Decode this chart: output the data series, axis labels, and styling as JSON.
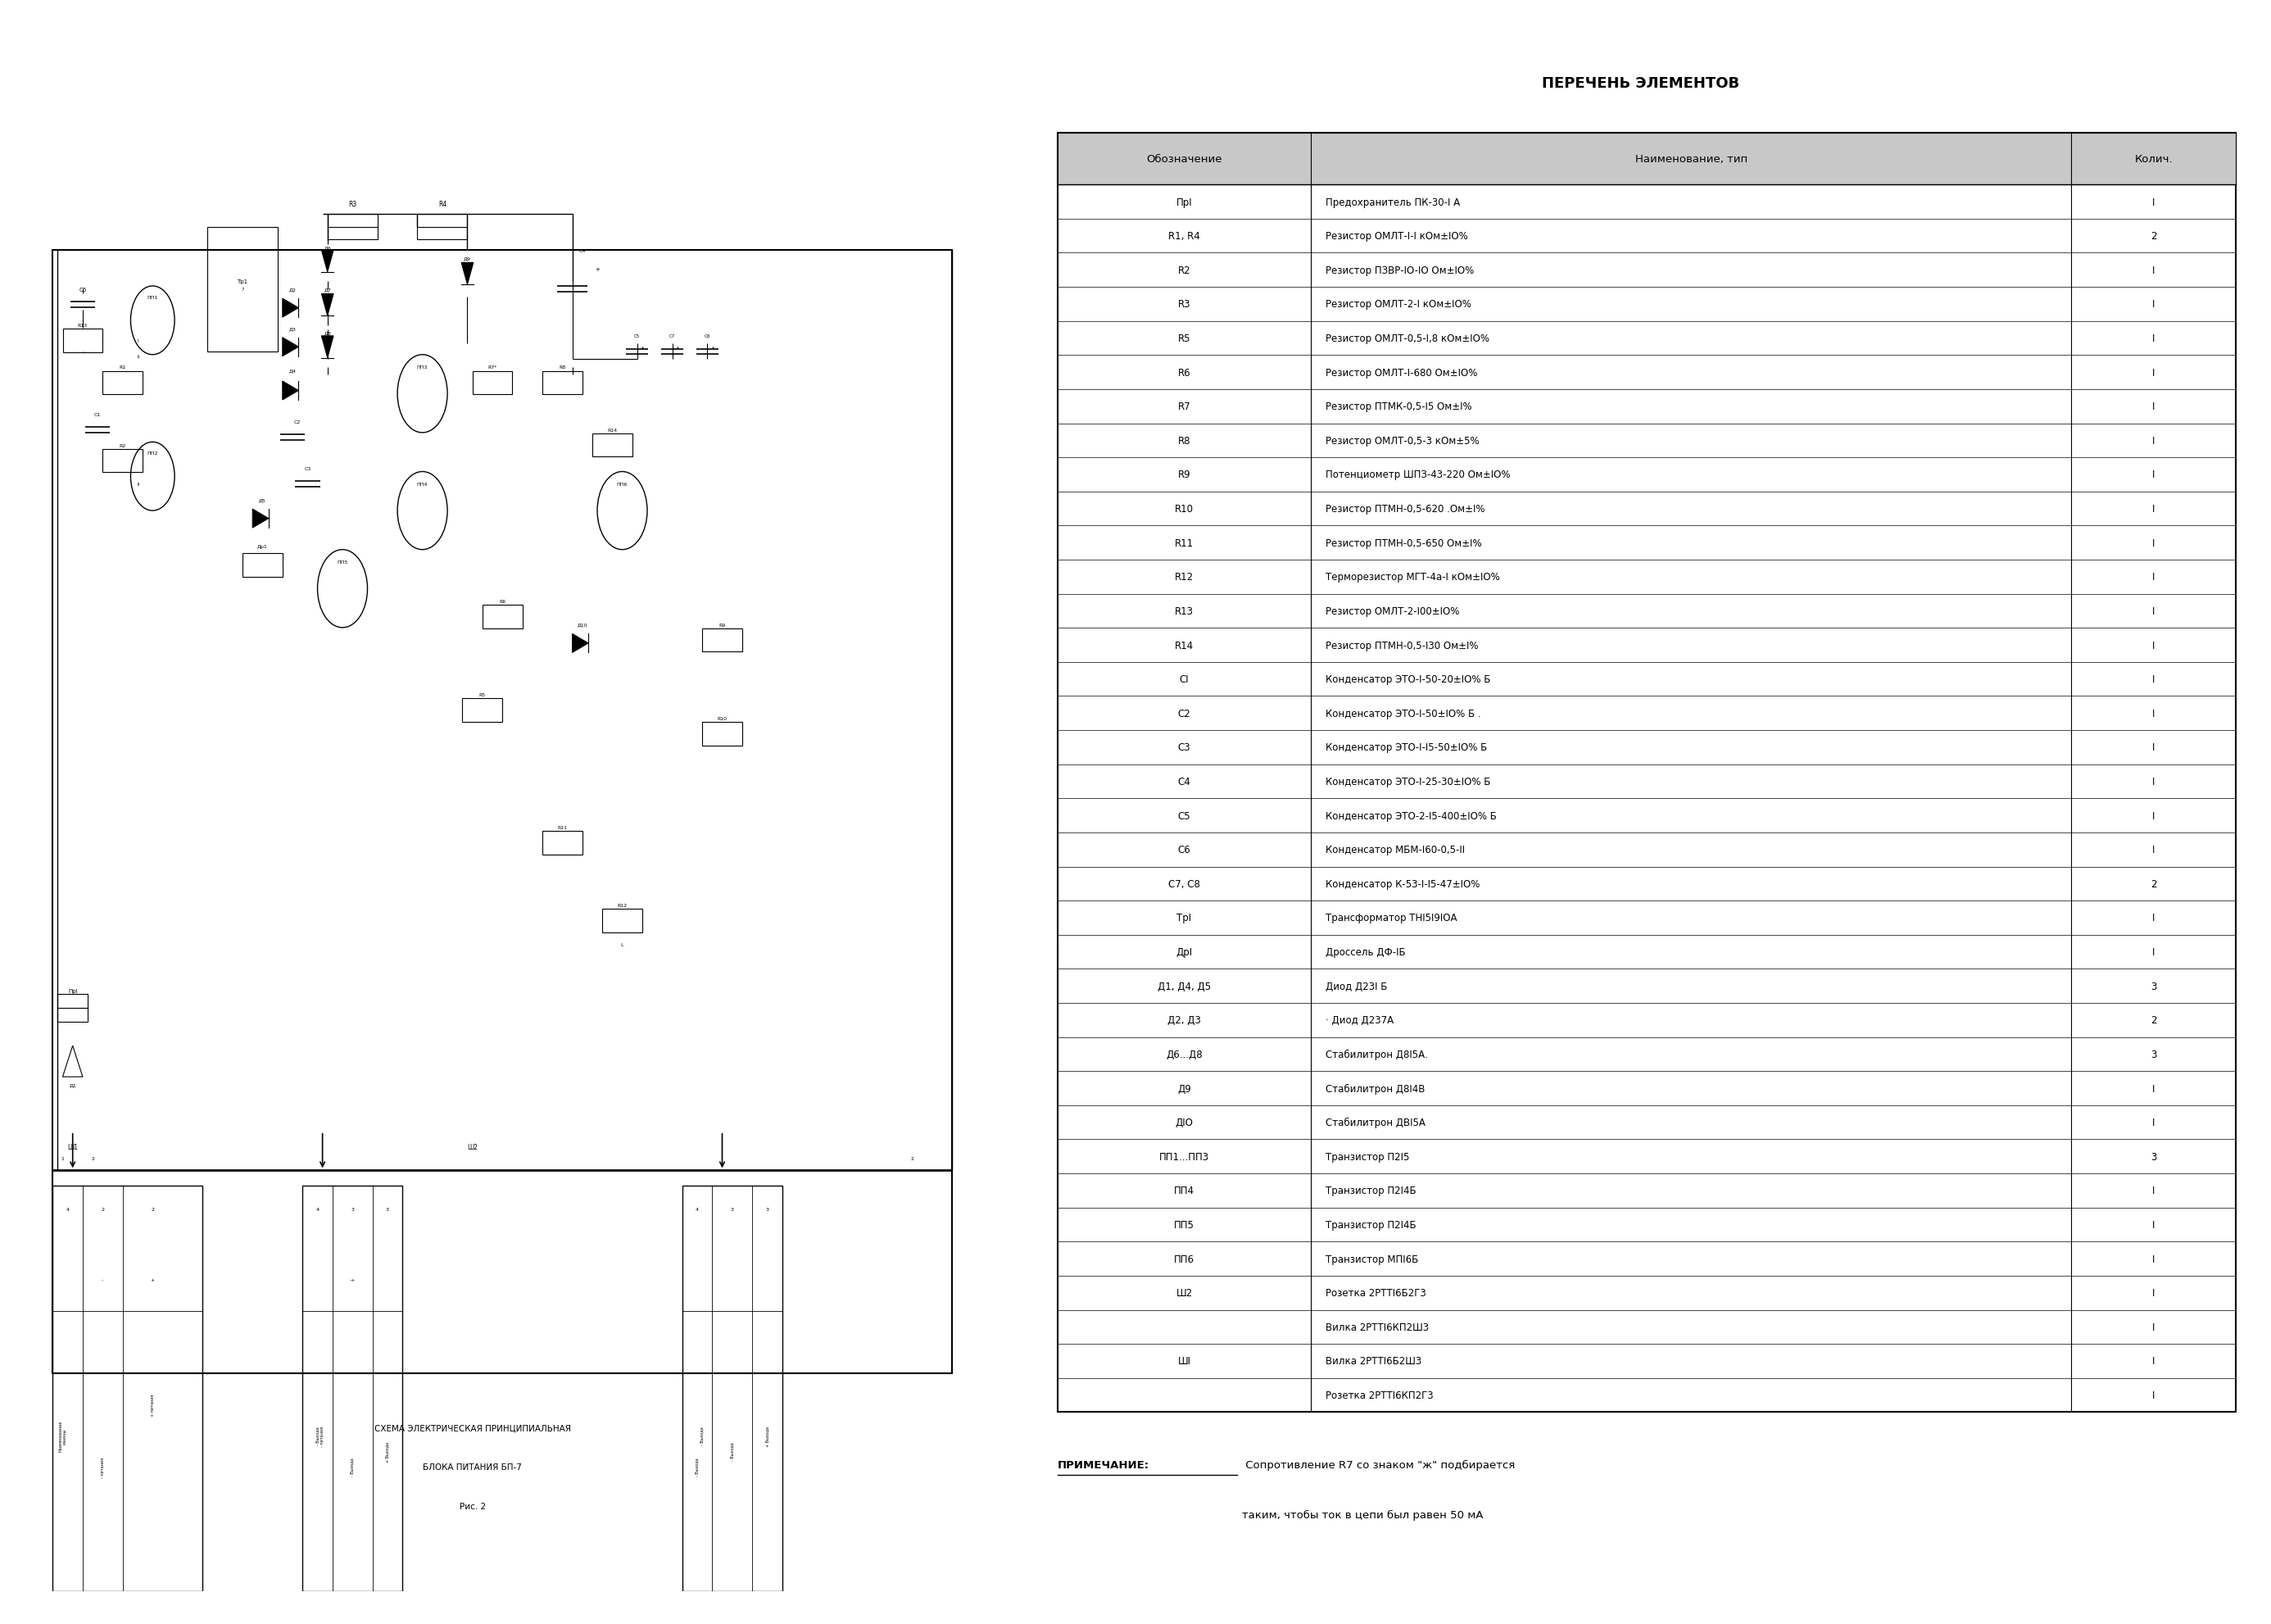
{
  "title": "ПЕРЕЧЕНЬ ЭЛЕМЕНТОВ",
  "page_bg": "#ffffff",
  "col_headers": [
    "Обозначение",
    "Наименование, тип",
    "Колич."
  ],
  "rows": [
    [
      "ПрI",
      "Предохранитель ПК-30-I А",
      "I"
    ],
    [
      "R1, R4",
      "Резистор ОМЛТ-I-I кОм±IO%",
      "2"
    ],
    [
      "R2",
      "Резистор ПЗВР-IO-IO Ом±IO%",
      "I"
    ],
    [
      "R3",
      "Резистор ОМЛТ-2-I кОм±IO%",
      "I"
    ],
    [
      "R5",
      "Резистор ОМЛТ-0,5-I,8 кОм±IO%",
      "I"
    ],
    [
      "R6",
      "Резистор ОМЛТ-I-680 Ом±IO%",
      "I"
    ],
    [
      "R7",
      "Резистор ПТМК-0,5-I5 Ом±I%",
      "I"
    ],
    [
      "R8",
      "Резистор ОМЛТ-0,5-3 кОм±5%",
      "I"
    ],
    [
      "R9",
      "Потенциометр ШПЗ-43-220 Ом±IO%",
      "I"
    ],
    [
      "R10",
      "Резистор ПТМН-0,5-620 .Ом±I%",
      "I"
    ],
    [
      "R11",
      "Резистор ПТМН-0,5-650 Ом±I%",
      "I"
    ],
    [
      "R12",
      "Терморезистор МГТ-4а-I кОм±IO%",
      "I"
    ],
    [
      "R13",
      "Резистор ОМЛТ-2-I00±IO%",
      "I"
    ],
    [
      "R14",
      "Резистор ПТМН-0,5-I30 Ом±I%",
      "I"
    ],
    [
      "CI",
      "Конденсатор ЭТО-I-50-20±IO% Б",
      "I"
    ],
    [
      "C2",
      "Конденсатор ЭТО-I-50±IO% Б .",
      "I"
    ],
    [
      "C3",
      "Конденсатор ЭТО-I-I5-50±IO% Б",
      "I"
    ],
    [
      "C4",
      "Конденсатор ЭТО-I-25-30±IO% Б",
      "I"
    ],
    [
      "C5",
      "Конденсатор ЭТО-2-I5-400±IO% Б",
      "I"
    ],
    [
      "C6",
      "Конденсатор МБМ-I60-0,5-II",
      "I"
    ],
    [
      "C7, C8",
      "Конденсатор К-53-I-I5-47±IO%",
      "2"
    ],
    [
      "ТрI",
      "Трансформатор ТНI5I9IOА",
      "I"
    ],
    [
      "ДрI",
      "Дроссель ДФ-IБ",
      "I"
    ],
    [
      "Д1, Д4, Д5",
      "Диод Д23I Б",
      "3"
    ],
    [
      "Д2, Д3",
      "· Диод Д237А",
      "2"
    ],
    [
      "Д6...Д8",
      "Стабилитрон Д8I5А.",
      "3"
    ],
    [
      "Д9",
      "Стабилитрон Д8I4В",
      "I"
    ],
    [
      "ДIO",
      "Стабилитрон ДBI5А",
      "I"
    ],
    [
      "ПП1...ПП3",
      "Транзистор П2I5",
      "3"
    ],
    [
      "ПП4",
      "Транзистор П2I4Б",
      "I"
    ],
    [
      "ПП5",
      "Транзистор П2I4Б",
      "I"
    ],
    [
      "ПП6",
      "Транзистор МПI6Б",
      "I"
    ],
    [
      "Ш2",
      "Розетка 2РТТI6Б2Г3",
      "I"
    ],
    [
      "",
      "Вилка 2РТТI6КП2Ш3",
      "I"
    ],
    [
      "ШI",
      "Вилка 2РТТI6Б2Ш3",
      "I"
    ],
    [
      "",
      "Розетка 2РТТI6КП2Г3",
      "I"
    ]
  ],
  "note_label": "ПРИМЕЧАНИЕ:",
  "note_text": " Сопротивление R7 со знаком \"ж\" подбирается",
  "note_text2": "таким, чтобы ток в цепи был равен 50 мА",
  "schema_title1": "СХЕМА ЭЛЕКТРИЧЕСКАЯ ПРИНЦИПИАЛЬНАЯ",
  "schema_title2": "БЛОКА ПИТАНИЯ БП-7",
  "schema_title3": "Рис. 2"
}
